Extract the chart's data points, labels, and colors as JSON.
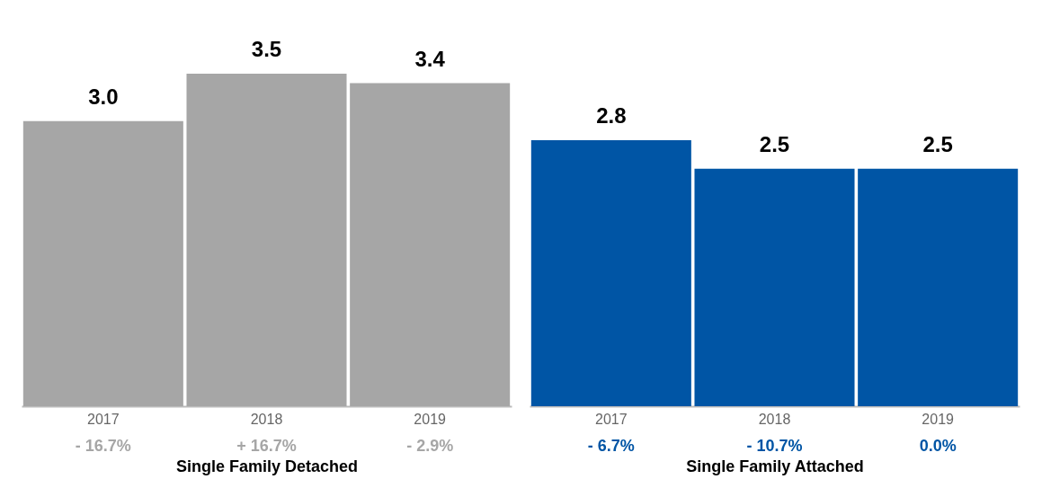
{
  "chart_data": [
    {
      "type": "bar",
      "xlabel": "Single Family Detached",
      "categories": [
        "2017",
        "2018",
        "2019"
      ],
      "values": [
        3.0,
        3.5,
        3.4
      ],
      "value_labels": [
        "3.0",
        "3.5",
        "3.4"
      ],
      "color": "#a6a6a6",
      "annotations": [
        "- 16.7%",
        "+ 16.7%",
        "- 2.9%"
      ]
    },
    {
      "type": "bar",
      "xlabel": "Single Family Attached",
      "categories": [
        "2017",
        "2018",
        "2019"
      ],
      "values": [
        2.8,
        2.5,
        2.5
      ],
      "value_labels": [
        "2.8",
        "2.5",
        "2.5"
      ],
      "color": "#0055a5",
      "annotations": [
        "- 6.7%",
        "- 10.7%",
        "0.0%"
      ]
    }
  ]
}
